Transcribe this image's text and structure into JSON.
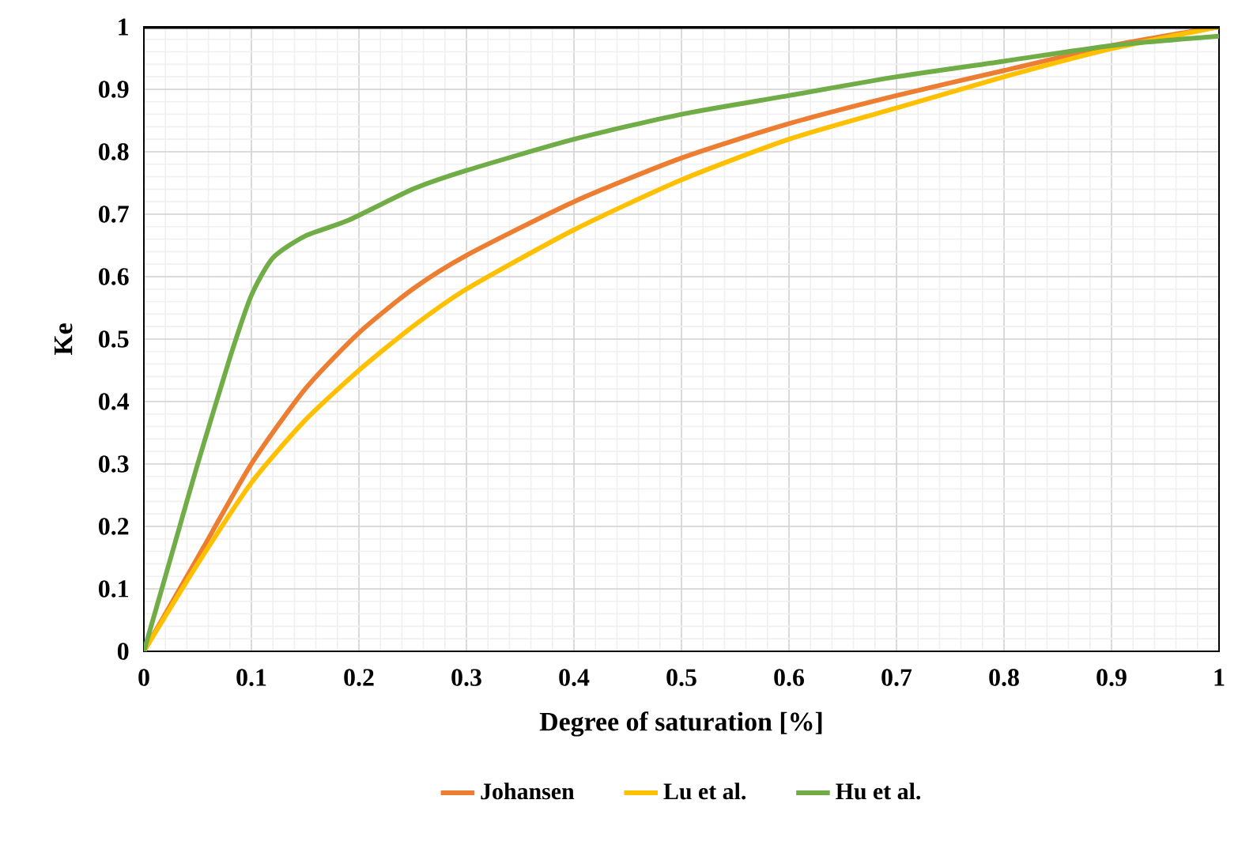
{
  "chart_data": {
    "type": "line",
    "xlabel": "Degree of saturation [%]",
    "ylabel": "Ke",
    "xlim": [
      0,
      1
    ],
    "ylim": [
      0,
      1
    ],
    "xticks": [
      0,
      0.1,
      0.2,
      0.3,
      0.4,
      0.5,
      0.6,
      0.7,
      0.8,
      0.9,
      1
    ],
    "yticks": [
      0,
      0.1,
      0.2,
      0.3,
      0.4,
      0.5,
      0.6,
      0.7,
      0.8,
      0.9,
      1
    ],
    "grid": true,
    "legend": "bottom",
    "marker": "none",
    "line_style": "solid",
    "series": [
      {
        "name": "Johansen",
        "color": "#ed7d31",
        "x": [
          0,
          0.05,
          0.1,
          0.15,
          0.2,
          0.25,
          0.3,
          0.4,
          0.5,
          0.6,
          0.7,
          0.8,
          0.9,
          1
        ],
        "values": [
          0,
          0.15,
          0.3,
          0.42,
          0.51,
          0.58,
          0.634,
          0.72,
          0.79,
          0.845,
          0.89,
          0.93,
          0.97,
          1.0
        ]
      },
      {
        "name": "Lu et al.",
        "color": "#ffc000",
        "x": [
          0,
          0.05,
          0.1,
          0.15,
          0.2,
          0.25,
          0.3,
          0.4,
          0.5,
          0.6,
          0.7,
          0.8,
          0.9,
          1
        ],
        "values": [
          0,
          0.14,
          0.27,
          0.37,
          0.45,
          0.52,
          0.58,
          0.675,
          0.755,
          0.82,
          0.87,
          0.92,
          0.965,
          1.0
        ]
      },
      {
        "name": "Hu et al.",
        "color": "#70ad47",
        "x": [
          0,
          0.03,
          0.05,
          0.08,
          0.1,
          0.12,
          0.15,
          0.19,
          0.25,
          0.3,
          0.4,
          0.5,
          0.6,
          0.7,
          0.8,
          0.9,
          1
        ],
        "values": [
          0,
          0.18,
          0.3,
          0.47,
          0.57,
          0.63,
          0.665,
          0.69,
          0.74,
          0.77,
          0.82,
          0.86,
          0.89,
          0.92,
          0.945,
          0.97,
          0.985
        ]
      }
    ]
  }
}
